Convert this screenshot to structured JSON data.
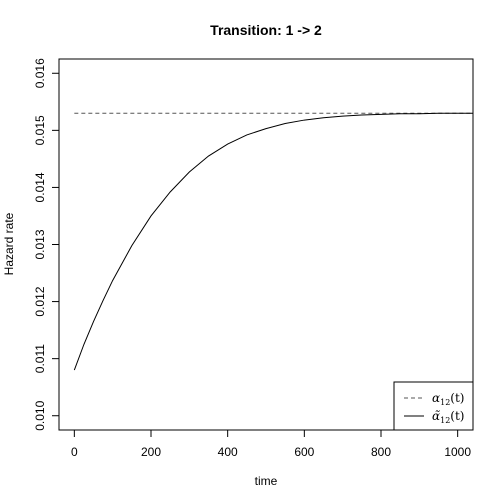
{
  "chart_data": {
    "type": "line",
    "title": "Transition: 1 -> 2",
    "xlabel": "time",
    "ylabel": "Hazard rate",
    "xlim": [
      -40,
      1040
    ],
    "ylim": [
      0.00975,
      0.01625
    ],
    "x_ticks": [
      0,
      200,
      400,
      600,
      800,
      1000
    ],
    "x_tick_labels": [
      "0",
      "200",
      "400",
      "600",
      "800",
      "1000"
    ],
    "y_ticks": [
      0.01,
      0.011,
      0.012,
      0.013,
      0.014,
      0.015,
      0.016
    ],
    "y_tick_labels": [
      "0.010",
      "0.011",
      "0.012",
      "0.013",
      "0.014",
      "0.015",
      "0.016"
    ],
    "grid": false,
    "legend_position": "bottom-right",
    "series": [
      {
        "label_main": "α",
        "label_sub": "12",
        "label_suffix": "(t)",
        "style": "dashed",
        "color": "#555555",
        "x": [
          0,
          1040
        ],
        "y": [
          0.0153,
          0.0153
        ]
      },
      {
        "label_main": "α̃",
        "label_sub": "12",
        "label_suffix": "(t)",
        "style": "solid",
        "color": "#000000",
        "x": [
          0,
          25,
          50,
          75,
          100,
          150,
          200,
          250,
          300,
          350,
          400,
          450,
          500,
          550,
          600,
          650,
          700,
          750,
          800,
          850,
          900,
          950,
          1000,
          1040
        ],
        "y": [
          0.0108,
          0.01125,
          0.01165,
          0.01202,
          0.01237,
          0.01298,
          0.0135,
          0.01392,
          0.01427,
          0.01455,
          0.01476,
          0.01492,
          0.01503,
          0.01512,
          0.01518,
          0.01522,
          0.01525,
          0.01527,
          0.01528,
          0.01529,
          0.01529,
          0.0153,
          0.0153,
          0.0153
        ]
      }
    ]
  }
}
